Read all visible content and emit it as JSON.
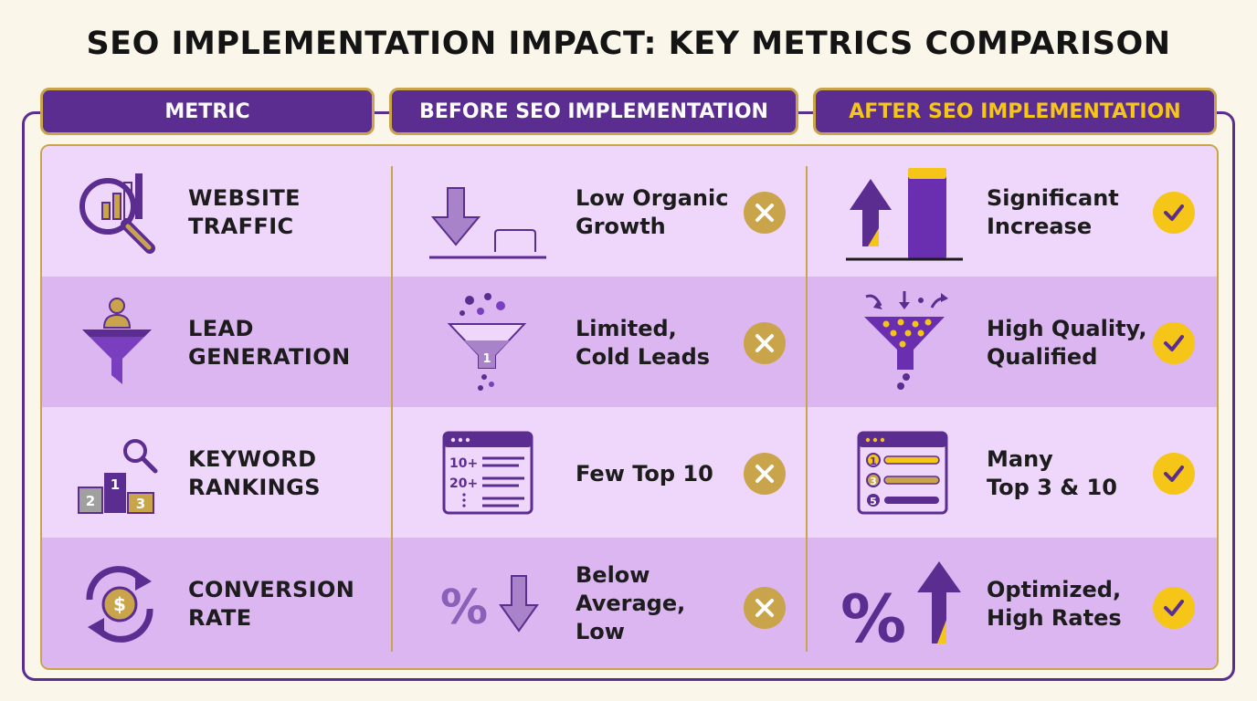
{
  "title": "SEO IMPLEMENTATION IMPACT: KEY METRICS COMPARISON",
  "headers": {
    "metric": "METRIC",
    "before": "BEFORE SEO IMPLEMENTATION",
    "after": "AFTER SEO IMPLEMENTATION"
  },
  "rows": [
    {
      "metric": "WEBSITE\nTRAFFIC",
      "metric_icon": "traffic-magnifier-chart-icon",
      "before": "Low Organic\nGrowth",
      "before_icon": "down-arrow-flat-icon",
      "before_badge_icon": "x-icon",
      "after": "Significant\nIncrease",
      "after_icon": "up-arrow-tall-bar-icon",
      "after_badge_icon": "check-icon"
    },
    {
      "metric": "LEAD\nGENERATION",
      "metric_icon": "person-funnel-icon",
      "before": "Limited,\nCold Leads",
      "before_icon": "funnel-one-icon",
      "before_badge_icon": "x-icon",
      "after": "High Quality,\nQualified",
      "after_icon": "funnel-filled-icon",
      "after_badge_icon": "check-icon"
    },
    {
      "metric": "KEYWORD\nRANKINGS",
      "metric_icon": "podium-search-icon",
      "before": "Few Top 10",
      "before_icon": "ranking-list-window-icon",
      "before_badge_icon": "x-icon",
      "after": "Many\nTop 3 & 10",
      "after_icon": "top-rank-window-icon",
      "after_badge_icon": "check-icon"
    },
    {
      "metric": "CONVERSION\nRATE",
      "metric_icon": "dollar-cycle-icon",
      "before": "Below\nAverage,\nLow",
      "before_icon": "percent-down-icon",
      "before_badge_icon": "x-icon",
      "after": "Optimized,\nHigh Rates",
      "after_icon": "percent-up-icon",
      "after_badge_icon": "check-icon"
    }
  ],
  "colors": {
    "purple": "#5b2d91",
    "gold": "#c9a44b",
    "yellow": "#f5c518",
    "row_light": "#efd6fb",
    "row_dark": "#dbb6f0"
  }
}
